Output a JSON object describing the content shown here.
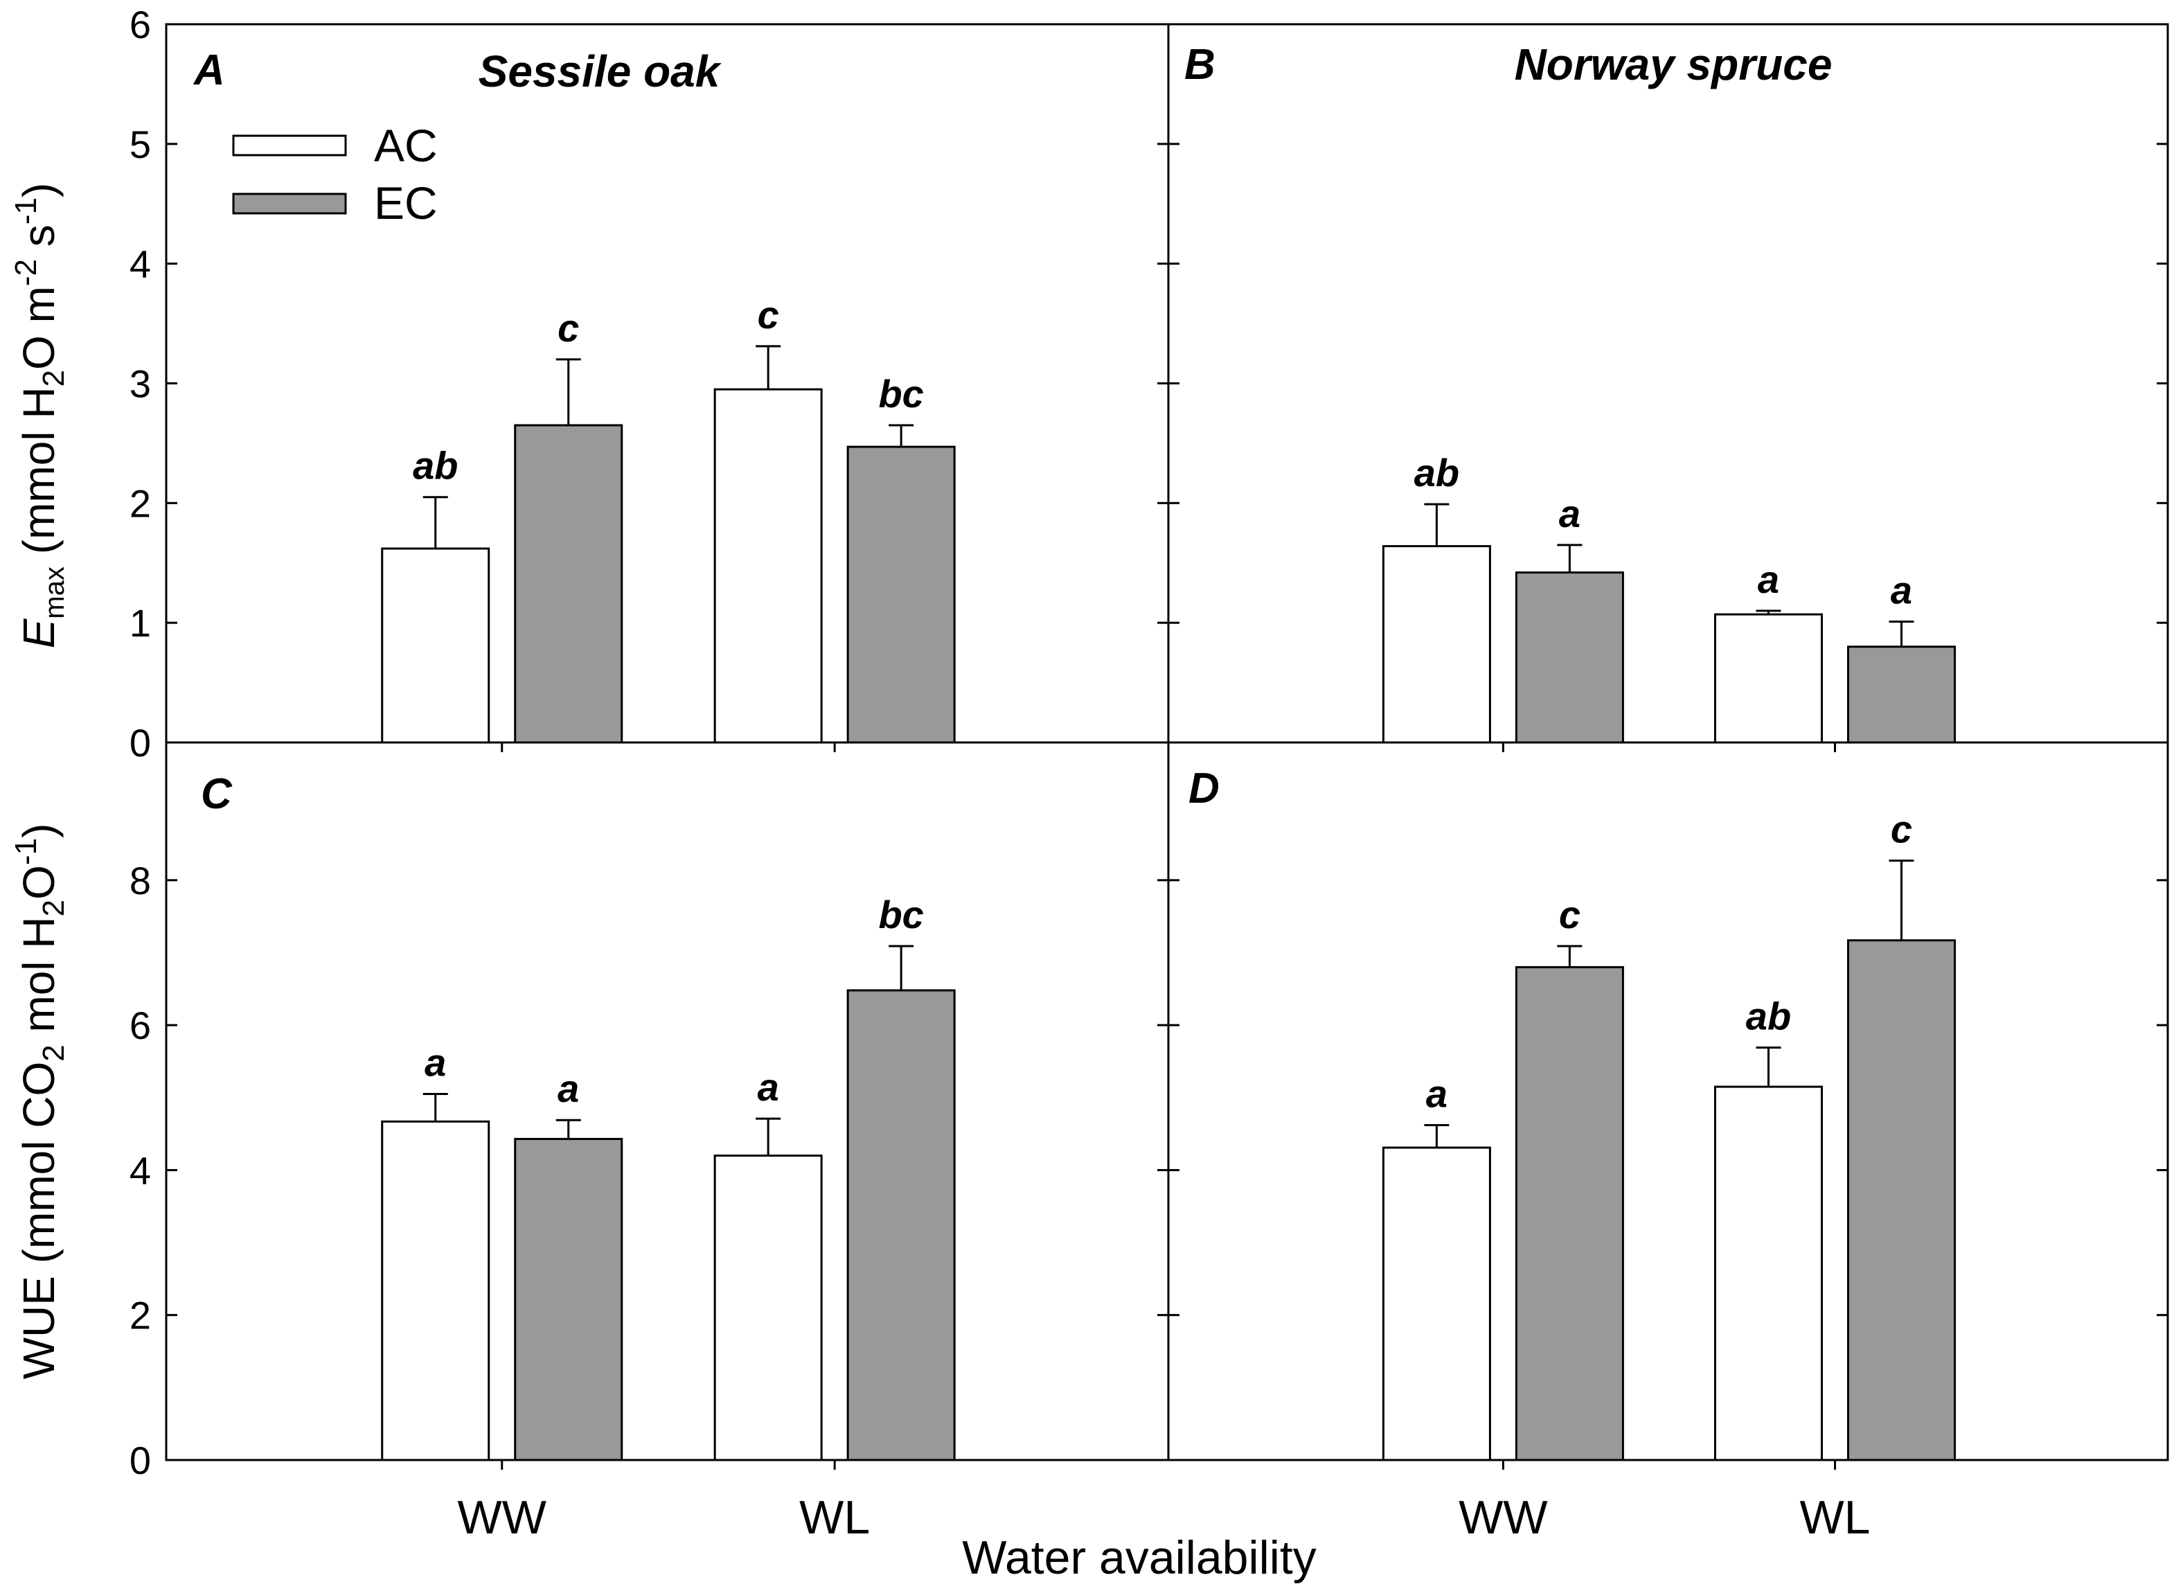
{
  "chart_data": [
    {
      "panel": "A",
      "title": "Sessile oak",
      "type": "bar",
      "categories": [
        "WW",
        "WL"
      ],
      "ylim": [
        0,
        6
      ],
      "yticks": [
        0,
        1,
        2,
        3,
        4,
        5,
        6
      ],
      "ylabel": "E_max (mmol H2O m-2 s-1)",
      "series": [
        {
          "name": "AC",
          "values": [
            1.62,
            2.95
          ],
          "errors": [
            0.43,
            0.36
          ],
          "letters": [
            "ab",
            "c"
          ]
        },
        {
          "name": "EC",
          "values": [
            2.65,
            2.47
          ],
          "errors": [
            0.55,
            0.18
          ],
          "letters": [
            "c",
            "bc"
          ]
        }
      ]
    },
    {
      "panel": "B",
      "title": "Norway spruce",
      "type": "bar",
      "categories": [
        "WW",
        "WL"
      ],
      "ylim": [
        0,
        6
      ],
      "yticks": [
        0,
        1,
        2,
        3,
        4,
        5,
        6
      ],
      "series": [
        {
          "name": "AC",
          "values": [
            1.64,
            1.07
          ],
          "errors": [
            0.35,
            0.03
          ],
          "letters": [
            "ab",
            "a"
          ]
        },
        {
          "name": "EC",
          "values": [
            1.42,
            0.8
          ],
          "errors": [
            0.23,
            0.21
          ],
          "letters": [
            "a",
            "a"
          ]
        }
      ]
    },
    {
      "panel": "C",
      "title": "",
      "type": "bar",
      "categories": [
        "WW",
        "WL"
      ],
      "ylim": [
        0,
        9.9
      ],
      "yticks": [
        0,
        2,
        4,
        6,
        8
      ],
      "ylabel": "WUE (mmol CO2 mol H2O-1)",
      "series": [
        {
          "name": "AC",
          "values": [
            4.67,
            4.2
          ],
          "errors": [
            0.38,
            0.51
          ],
          "letters": [
            "a",
            "a"
          ]
        },
        {
          "name": "EC",
          "values": [
            4.43,
            6.48
          ],
          "errors": [
            0.26,
            0.61
          ],
          "letters": [
            "a",
            "bc"
          ]
        }
      ]
    },
    {
      "panel": "D",
      "title": "",
      "type": "bar",
      "categories": [
        "WW",
        "WL"
      ],
      "ylim": [
        0,
        9.9
      ],
      "yticks": [
        0,
        2,
        4,
        6,
        8
      ],
      "series": [
        {
          "name": "AC",
          "values": [
            4.31,
            5.15
          ],
          "errors": [
            0.31,
            0.54
          ],
          "letters": [
            "a",
            "ab"
          ]
        },
        {
          "name": "EC",
          "values": [
            6.8,
            7.17
          ],
          "errors": [
            0.29,
            1.1
          ],
          "letters": [
            "c",
            "c"
          ]
        }
      ]
    }
  ],
  "legend": {
    "items": [
      "AC",
      "EC"
    ],
    "position": "top-left"
  },
  "ylabel_top": {
    "italic": "E",
    "sub": "max",
    "text1": " (mmol H",
    "sub2": "2",
    "text2": "O m",
    "sup1": "-2",
    "text3": " s",
    "sup2": "-1",
    "text4": ")"
  },
  "ylabel_bottom": {
    "text1": "WUE (mmol CO",
    "sub1": "2",
    "text2": " mol H",
    "sub2": "2",
    "text3": "O",
    "sup1": "-1",
    "text4": ")"
  },
  "xlabel": "Water availability",
  "colors": {
    "AC": "#ffffff",
    "EC": "#999999",
    "axis": "#000000"
  }
}
